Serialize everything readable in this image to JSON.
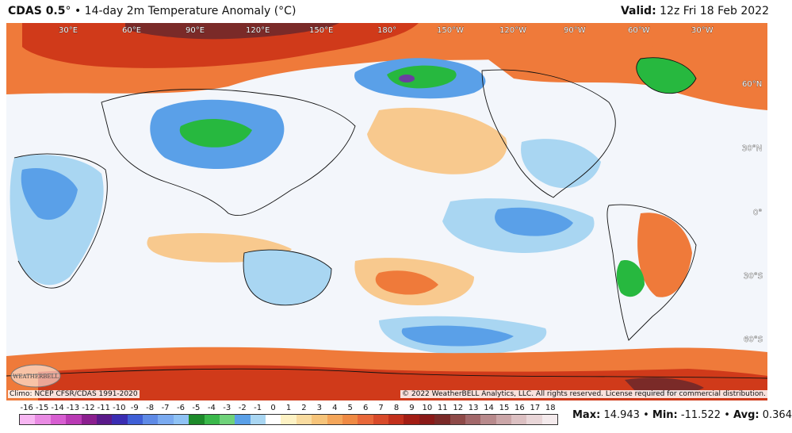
{
  "header": {
    "model": "CDAS 0.5",
    "degree_mark": "°",
    "separator": "•",
    "title": "14-day 2m Temperature Anomaly (°C)",
    "valid_label": "Valid:",
    "valid_time": "12z Fri 18 Feb 2022"
  },
  "map": {
    "lon_labels": [
      "30°E",
      "60°E",
      "90°E",
      "120°E",
      "150°E",
      "180°",
      "150°W",
      "120°W",
      "90°W",
      "60°W",
      "30°W"
    ],
    "lat_labels": [
      "60°N",
      "30°N",
      "0°",
      "30°S",
      "60°S"
    ],
    "logo_text": "WEATHERBELL",
    "colors": {
      "warm_strong": "#d03a1a",
      "warm_mid": "#ef7a3a",
      "warm_light": "#f8c98e",
      "neutral": "#f3f6fb",
      "cool_light": "#a9d6f2",
      "cool_mid": "#5aa0e8",
      "cold": "#27b83f",
      "very_cold": "#6b3fa0"
    }
  },
  "footer": {
    "climo": "Climo: NCEP CFSR/CDAS 1991-2020",
    "copyright": "© 2022 WeatherBELL Analytics, LLC. All rights reserved. License required for commercial distribution."
  },
  "colorbar": {
    "ticks": [
      "-16",
      "-15",
      "-14",
      "-13",
      "-12",
      "-11",
      "-10",
      "-9",
      "-8",
      "-7",
      "-6",
      "-5",
      "-4",
      "-3",
      "-2",
      "-1",
      "0",
      "1",
      "2",
      "3",
      "4",
      "5",
      "6",
      "7",
      "8",
      "9",
      "10",
      "11",
      "12",
      "13",
      "14",
      "15",
      "16",
      "17",
      "18"
    ],
    "colors": [
      "#f7b6f2",
      "#e98be3",
      "#d75ed1",
      "#b93ab4",
      "#8b1f8f",
      "#5a1a8a",
      "#3a2db2",
      "#3f5fd6",
      "#5e8ae6",
      "#7aaaf0",
      "#8fc2f4",
      "#1d8a2a",
      "#3ab84a",
      "#6fd27a",
      "#5aa0e8",
      "#a9d6f2",
      "#ffffff",
      "#fdf2c4",
      "#f9dca0",
      "#f6c47a",
      "#f4a65a",
      "#ef8a44",
      "#e8683a",
      "#d84a2a",
      "#c2301c",
      "#a21d14",
      "#8a1a18",
      "#7a2a28",
      "#8e4a48",
      "#a2686a",
      "#b88a8c",
      "#cba6a8",
      "#dcc0c2",
      "#e9d6d8",
      "#f4eaec"
    ]
  },
  "stats": {
    "max_label": "Max:",
    "max": "14.943",
    "min_label": "Min:",
    "min": "-11.522",
    "avg_label": "Avg:",
    "avg": "0.364",
    "sep": "•"
  }
}
